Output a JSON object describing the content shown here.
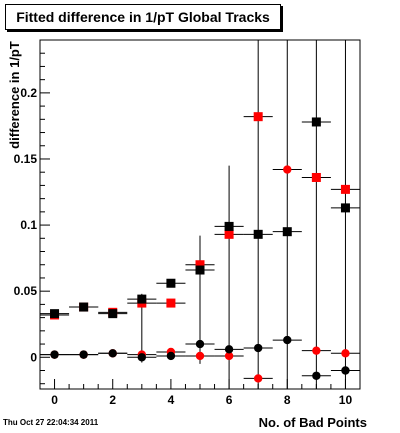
{
  "chart_data": {
    "type": "scatter",
    "title": "Fitted difference in 1/pT  Global Tracks",
    "xlabel": "No. of Bad Points",
    "ylabel": "difference in 1/pT",
    "xlim": [
      -0.5,
      10.5
    ],
    "ylim": [
      -0.024,
      0.24
    ],
    "xticks": [
      "0",
      "2",
      "4",
      "6",
      "8",
      "10"
    ],
    "yticks": [
      "0",
      "0.05",
      "0.1",
      "0.15",
      "0.2"
    ],
    "grid": false,
    "series": [
      {
        "marker": "square",
        "color": "#ff0000",
        "points": [
          {
            "x": 0,
            "y": 0.032
          },
          {
            "x": 1,
            "y": 0.038
          },
          {
            "x": 2,
            "y": 0.034
          },
          {
            "x": 3,
            "y": 0.041
          },
          {
            "x": 4,
            "y": 0.041
          },
          {
            "x": 5,
            "y": 0.07
          },
          {
            "x": 6,
            "y": 0.093
          },
          {
            "x": 7,
            "y": 0.182
          },
          {
            "x": 9,
            "y": 0.136
          },
          {
            "x": 10,
            "y": 0.127
          }
        ]
      },
      {
        "marker": "square",
        "color": "#000000",
        "points": [
          {
            "x": 0,
            "y": 0.033
          },
          {
            "x": 1,
            "y": 0.038
          },
          {
            "x": 2,
            "y": 0.033
          },
          {
            "x": 3,
            "y": 0.044
          },
          {
            "x": 4,
            "y": 0.056
          },
          {
            "x": 5,
            "y": 0.066
          },
          {
            "x": 6,
            "y": 0.099
          },
          {
            "x": 7,
            "y": 0.093
          },
          {
            "x": 8,
            "y": 0.095
          },
          {
            "x": 9,
            "y": 0.178
          },
          {
            "x": 10,
            "y": 0.113
          }
        ]
      },
      {
        "marker": "circle",
        "color": "#ff0000",
        "points": [
          {
            "x": 0,
            "y": 0.002
          },
          {
            "x": 1,
            "y": 0.002
          },
          {
            "x": 2,
            "y": 0.003
          },
          {
            "x": 3,
            "y": 0.002
          },
          {
            "x": 4,
            "y": 0.004
          },
          {
            "x": 5,
            "y": 0.001
          },
          {
            "x": 6,
            "y": 0.001
          },
          {
            "x": 7,
            "y": -0.016
          },
          {
            "x": 8,
            "y": 0.142
          },
          {
            "x": 9,
            "y": 0.005
          },
          {
            "x": 10,
            "y": 0.003
          }
        ]
      },
      {
        "marker": "circle",
        "color": "#000000",
        "points": [
          {
            "x": 0,
            "y": 0.002
          },
          {
            "x": 1,
            "y": 0.002
          },
          {
            "x": 2,
            "y": 0.003
          },
          {
            "x": 3,
            "y": 0.0
          },
          {
            "x": 4,
            "y": 0.001
          },
          {
            "x": 5,
            "y": 0.01
          },
          {
            "x": 6,
            "y": 0.006
          },
          {
            "x": 7,
            "y": 0.007
          },
          {
            "x": 8,
            "y": 0.013
          },
          {
            "x": 9,
            "y": -0.014
          },
          {
            "x": 10,
            "y": -0.01
          }
        ]
      }
    ],
    "error_bars": [
      {
        "x": 3,
        "lo": -0.004,
        "hi": 0.048
      },
      {
        "x": 5,
        "lo": -0.005,
        "hi": 0.092
      },
      {
        "x": 6,
        "lo": -0.024,
        "hi": 0.145
      },
      {
        "x": 7,
        "lo": -0.024,
        "hi": 0.24
      },
      {
        "x": 8,
        "lo": -0.024,
        "hi": 0.24
      },
      {
        "x": 9,
        "lo": -0.024,
        "hi": 0.24
      },
      {
        "x": 10,
        "lo": -0.024,
        "hi": 0.24
      }
    ]
  },
  "footer": {
    "datestamp": "Thu Oct 27 22:04:34 2011"
  }
}
